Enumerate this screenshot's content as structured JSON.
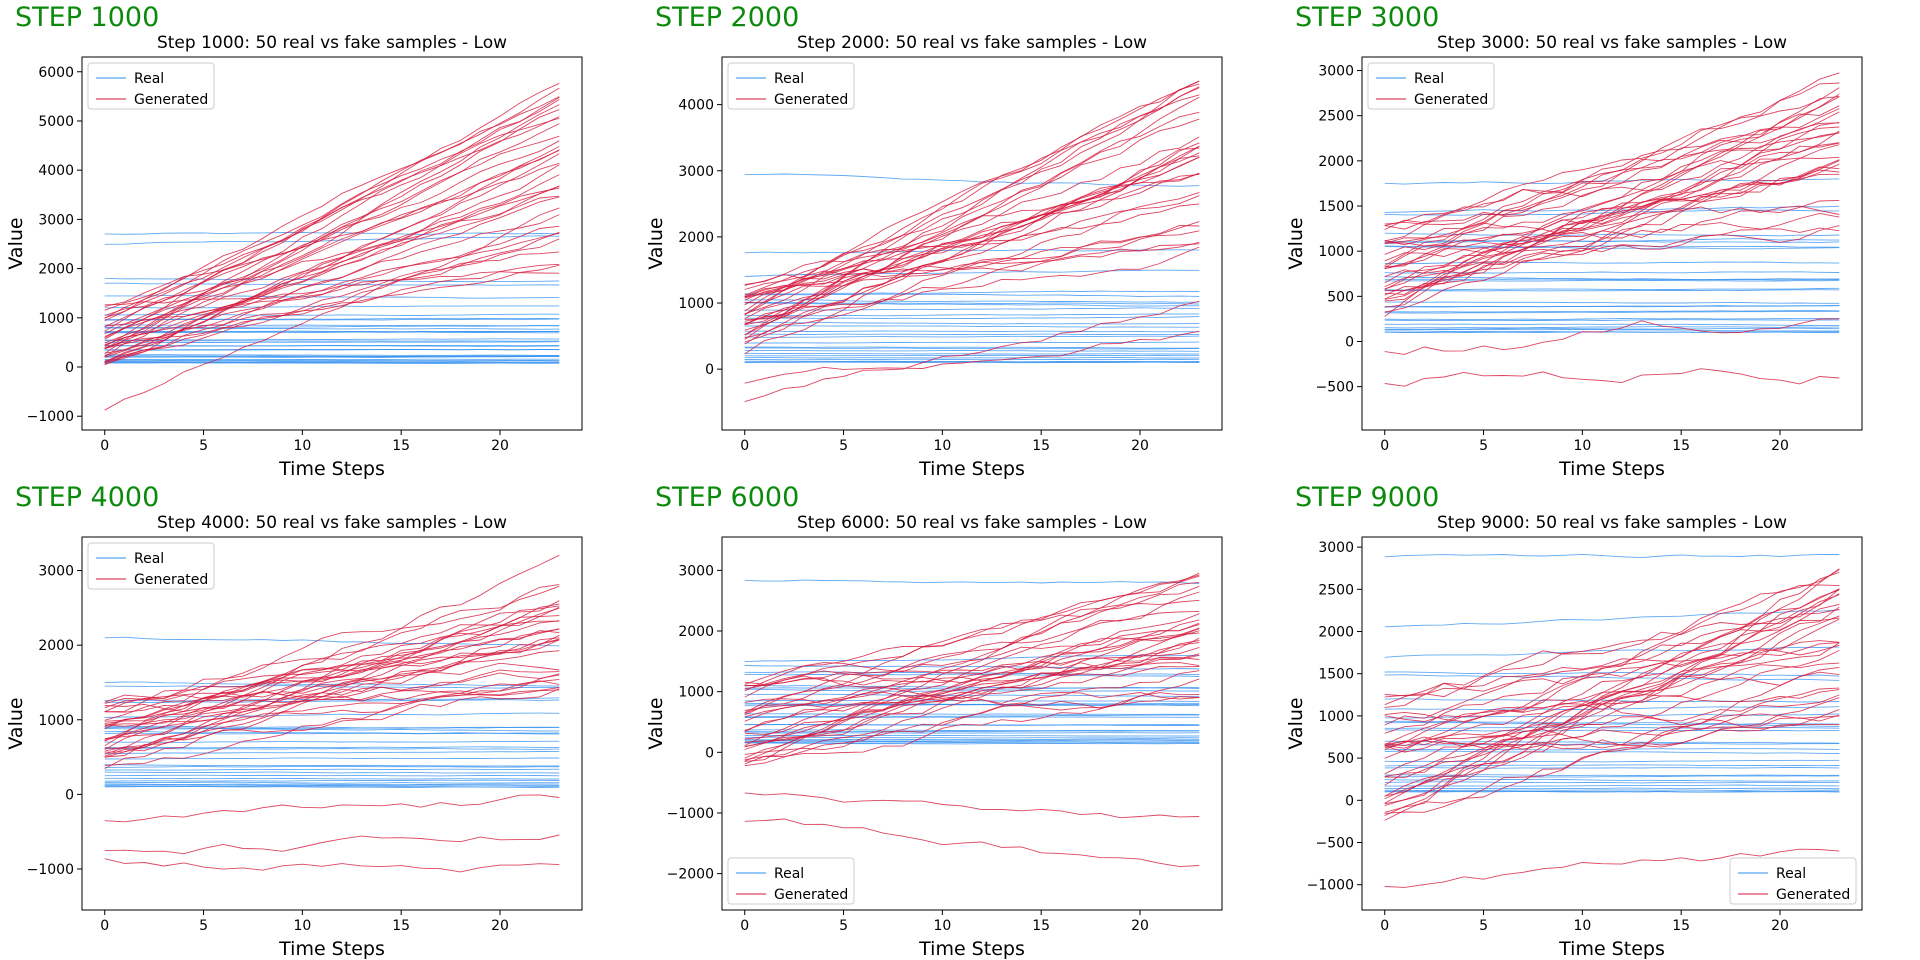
{
  "colors": {
    "real": "#2b8cf0",
    "generated": "#d6173b",
    "step_label": "#0b8a0b"
  },
  "chart_data": [
    {
      "type": "line",
      "step_label": "STEP 1000",
      "title": "Step 1000: 50 real vs fake samples - Low",
      "xlabel": "Time Steps",
      "ylabel": "Value",
      "xlim": [
        -1.15,
        24.15
      ],
      "ylim": [
        -1280,
        6300
      ],
      "xticks": [
        0,
        5,
        10,
        15,
        20
      ],
      "yticks": [
        -1000,
        0,
        1000,
        2000,
        3000,
        4000,
        5000,
        6000
      ],
      "legend": {
        "position": "upper-left",
        "entries": [
          "Real",
          "Generated"
        ]
      },
      "series": [
        {
          "group": "real",
          "start": 2700,
          "end": 2700,
          "count": 1
        },
        {
          "group": "real",
          "start": 2500,
          "end": 2650,
          "count": 1
        },
        {
          "group": "real",
          "start": 1800,
          "end": 1750,
          "count": 1
        },
        {
          "group": "real",
          "start": 1700,
          "end": 1650,
          "count": 1
        },
        {
          "group": "real",
          "start": 1450,
          "end": 1400,
          "count": 1
        },
        {
          "group": "real",
          "start": 1200,
          "end": 1250,
          "count": 1
        },
        {
          "group": "real",
          "start": 80,
          "end": 1100,
          "count": 26,
          "spread": 0.02
        },
        {
          "group": "generated",
          "start": -900,
          "end": 3200,
          "count": 1,
          "noise": 150
        },
        {
          "group": "generated",
          "start": -100,
          "end": 5900,
          "count": 32,
          "noise": 160
        },
        {
          "group": "generated",
          "start": 400,
          "end": 2100,
          "count": 1,
          "noise": 120
        }
      ]
    },
    {
      "type": "line",
      "step_label": "STEP 2000",
      "title": "Step 2000: 50 real vs fake samples - Low",
      "xlabel": "Time Steps",
      "ylabel": "Value",
      "xlim": [
        -1.15,
        24.15
      ],
      "ylim": [
        -920,
        4720
      ],
      "xticks": [
        0,
        5,
        10,
        15,
        20
      ],
      "yticks": [
        0,
        1000,
        2000,
        3000,
        4000
      ],
      "legend": {
        "position": "upper-left",
        "entries": [
          "Real",
          "Generated"
        ]
      },
      "series": [
        {
          "group": "real",
          "start": 2950,
          "end": 2800,
          "count": 1
        },
        {
          "group": "real",
          "start": 1750,
          "end": 1800,
          "count": 1
        },
        {
          "group": "real",
          "start": 1400,
          "end": 1500,
          "count": 1
        },
        {
          "group": "real",
          "start": 100,
          "end": 1200,
          "count": 24,
          "spread": 0.02
        },
        {
          "group": "generated",
          "start": -500,
          "end": 1000,
          "count": 1,
          "noise": 140
        },
        {
          "group": "generated",
          "start": -200,
          "end": 600,
          "count": 1,
          "noise": 140
        },
        {
          "group": "generated",
          "start": 300,
          "end": 4400,
          "count": 30,
          "noise": 180
        }
      ]
    },
    {
      "type": "line",
      "step_label": "STEP 3000",
      "title": "Step 3000: 50 real vs fake samples - Low",
      "xlabel": "Time Steps",
      "ylabel": "Value",
      "xlim": [
        -1.15,
        24.15
      ],
      "ylim": [
        -980,
        3150
      ],
      "xticks": [
        0,
        5,
        10,
        15,
        20
      ],
      "yticks": [
        -500,
        0,
        500,
        1000,
        1500,
        2000,
        2500,
        3000
      ],
      "legend": {
        "position": "upper-left",
        "entries": [
          "Real",
          "Generated"
        ]
      },
      "series": [
        {
          "group": "real",
          "start": 1750,
          "end": 1800,
          "count": 1
        },
        {
          "group": "real",
          "start": 1400,
          "end": 1450,
          "count": 1
        },
        {
          "group": "real",
          "start": 100,
          "end": 1300,
          "count": 26,
          "spread": 0.02
        },
        {
          "group": "generated",
          "start": -400,
          "end": -300,
          "count": 1,
          "noise": 160
        },
        {
          "group": "generated",
          "start": -100,
          "end": 300,
          "count": 1,
          "noise": 160
        },
        {
          "group": "generated",
          "start": 200,
          "end": 3000,
          "count": 30,
          "noise": 180
        }
      ]
    },
    {
      "type": "line",
      "step_label": "STEP 4000",
      "title": "Step 4000: 50 real vs fake samples - Low",
      "xlabel": "Time Steps",
      "ylabel": "Value",
      "xlim": [
        -1.15,
        24.15
      ],
      "ylim": [
        -1550,
        3450
      ],
      "xticks": [
        0,
        5,
        10,
        15,
        20
      ],
      "yticks": [
        -1000,
        0,
        1000,
        2000,
        3000
      ],
      "legend": {
        "position": "upper-left",
        "entries": [
          "Real",
          "Generated"
        ]
      },
      "series": [
        {
          "group": "real",
          "start": 2100,
          "end": 2000,
          "count": 1
        },
        {
          "group": "real",
          "start": 1500,
          "end": 1450,
          "count": 1
        },
        {
          "group": "real",
          "start": 100,
          "end": 1300,
          "count": 26,
          "spread": 0.02
        },
        {
          "group": "generated",
          "start": -900,
          "end": -1000,
          "count": 1,
          "noise": 140
        },
        {
          "group": "generated",
          "start": -800,
          "end": -600,
          "count": 1,
          "noise": 140
        },
        {
          "group": "generated",
          "start": -400,
          "end": -100,
          "count": 1,
          "noise": 140
        },
        {
          "group": "generated",
          "start": 400,
          "end": 3100,
          "count": 29,
          "noise": 170
        }
      ]
    },
    {
      "type": "line",
      "step_label": "STEP 6000",
      "title": "Step 6000: 50 real vs fake samples - Low",
      "xlabel": "Time Steps",
      "ylabel": "Value",
      "xlim": [
        -1.15,
        24.15
      ],
      "ylim": [
        -2600,
        3550
      ],
      "xticks": [
        0,
        5,
        10,
        15,
        20
      ],
      "yticks": [
        -2000,
        -1000,
        0,
        1000,
        2000,
        3000
      ],
      "legend": {
        "position": "lower-left",
        "entries": [
          "Real",
          "Generated"
        ]
      },
      "series": [
        {
          "group": "real",
          "start": 2850,
          "end": 2800,
          "count": 1
        },
        {
          "group": "real",
          "start": 1500,
          "end": 1600,
          "count": 1
        },
        {
          "group": "real",
          "start": 150,
          "end": 1400,
          "count": 26,
          "spread": 0.02
        },
        {
          "group": "generated",
          "start": -1100,
          "end": -1950,
          "count": 1,
          "noise": 160
        },
        {
          "group": "generated",
          "start": -650,
          "end": -1100,
          "count": 1,
          "noise": 140
        },
        {
          "group": "generated",
          "start": -300,
          "end": 3000,
          "count": 30,
          "noise": 200
        }
      ]
    },
    {
      "type": "line",
      "step_label": "STEP 9000",
      "title": "Step 9000: 50 real vs fake samples - Low",
      "xlabel": "Time Steps",
      "ylabel": "Value",
      "xlim": [
        -1.15,
        24.15
      ],
      "ylim": [
        -1300,
        3120
      ],
      "xticks": [
        0,
        5,
        10,
        15,
        20
      ],
      "yticks": [
        -1000,
        -500,
        0,
        500,
        1000,
        1500,
        2000,
        2500,
        3000
      ],
      "legend": {
        "position": "lower-right",
        "entries": [
          "Real",
          "Generated"
        ]
      },
      "series": [
        {
          "group": "real",
          "start": 2880,
          "end": 2920,
          "count": 1
        },
        {
          "group": "real",
          "start": 2050,
          "end": 2250,
          "count": 1
        },
        {
          "group": "real",
          "start": 1700,
          "end": 1800,
          "count": 1
        },
        {
          "group": "real",
          "start": 100,
          "end": 1400,
          "count": 25,
          "spread": 0.02
        },
        {
          "group": "generated",
          "start": -1000,
          "end": -600,
          "count": 1,
          "noise": 110
        },
        {
          "group": "generated",
          "start": -250,
          "end": 2800,
          "count": 31,
          "noise": 190
        }
      ]
    }
  ]
}
